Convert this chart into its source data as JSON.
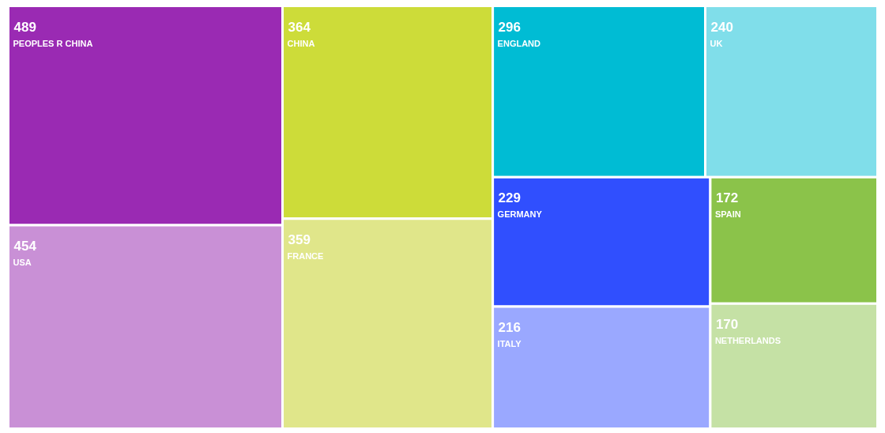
{
  "chart_data": {
    "type": "other",
    "categories": [
      "PEOPLES R CHINA",
      "USA",
      "CHINA",
      "FRANCE",
      "ENGLAND",
      "UK",
      "GERMANY",
      "ITALY",
      "SPAIN",
      "NETHERLANDS"
    ],
    "values": [
      489,
      454,
      364,
      359,
      296,
      240,
      229,
      216,
      172,
      170
    ],
    "colors": [
      "#9a2ab3",
      "#c990d6",
      "#cddc39",
      "#e0e68a",
      "#00bcd4",
      "#80deea",
      "#304ffe",
      "#9aa8ff",
      "#8bc34a",
      "#c5e1a5"
    ],
    "data_labels": true
  }
}
